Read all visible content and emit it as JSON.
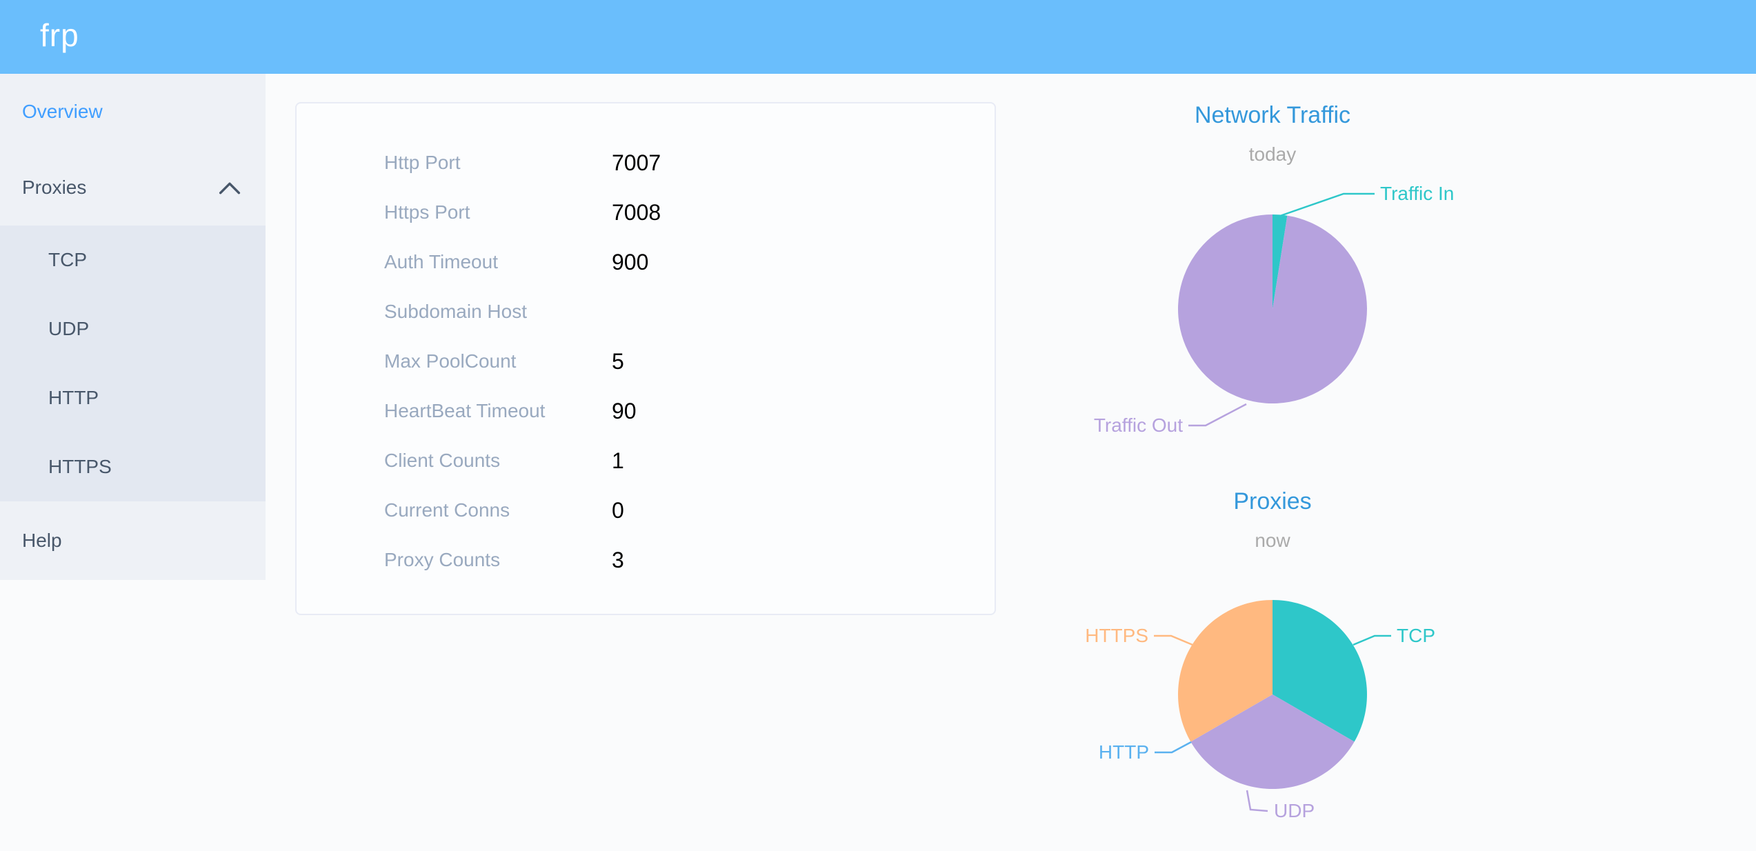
{
  "app": {
    "logo": "frp"
  },
  "sidebar": {
    "items": [
      {
        "label": "Overview",
        "active": true
      },
      {
        "label": "Proxies",
        "expanded": true,
        "children": [
          {
            "label": "TCP"
          },
          {
            "label": "UDP"
          },
          {
            "label": "HTTP"
          },
          {
            "label": "HTTPS"
          }
        ]
      },
      {
        "label": "Help"
      }
    ]
  },
  "server_info": {
    "rows": [
      {
        "label": "Http Port",
        "value": "7007"
      },
      {
        "label": "Https Port",
        "value": "7008"
      },
      {
        "label": "Auth Timeout",
        "value": "900"
      },
      {
        "label": "Subdomain Host",
        "value": ""
      },
      {
        "label": "Max PoolCount",
        "value": "5"
      },
      {
        "label": "HeartBeat Timeout",
        "value": "90"
      },
      {
        "label": "Client Counts",
        "value": "1"
      },
      {
        "label": "Current Conns",
        "value": "0"
      },
      {
        "label": "Proxy Counts",
        "value": "3"
      }
    ]
  },
  "chart_data": [
    {
      "type": "pie",
      "title": "Network Traffic",
      "subtitle": "today",
      "legend": "none",
      "labels_position": "outside-with-leader-lines",
      "values_are_percent_estimates": true,
      "slices": [
        {
          "label": "Traffic In",
          "value": 2.5,
          "color": "#2ec7c9"
        },
        {
          "label": "Traffic Out",
          "value": 97.5,
          "color": "#b6a2de"
        }
      ]
    },
    {
      "type": "pie",
      "title": "Proxies",
      "subtitle": "now",
      "legend": "none",
      "labels_position": "outside-with-leader-lines",
      "slices": [
        {
          "label": "TCP",
          "value": 1,
          "color": "#2ec7c9"
        },
        {
          "label": "UDP",
          "value": 1,
          "color": "#b6a2de"
        },
        {
          "label": "HTTP",
          "value": 0,
          "color": "#5ab1ef"
        },
        {
          "label": "HTTPS",
          "value": 1,
          "color": "#ffb980"
        }
      ]
    }
  ],
  "colors": {
    "header_bg": "#6abefc",
    "sidebar_bg": "#eef1f6",
    "submenu_bg": "#e3e8f1",
    "sidebar_text": "#48576a",
    "active_item": "#409eff",
    "chart_title": "#3498db",
    "chart_subtitle": "#aaaaaa",
    "table_label": "#99a9bf",
    "table_value": "#000000",
    "card_border": "#e8ebf5",
    "page_bg": "#fafbfc"
  }
}
